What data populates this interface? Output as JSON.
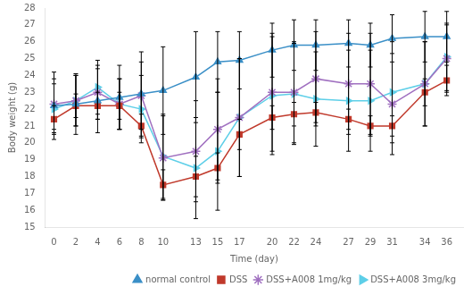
{
  "chart_data": {
    "type": "line",
    "xlabel": "Time (day)",
    "ylabel": "Body weight (g)",
    "x": [
      0,
      2,
      4,
      6,
      8,
      10,
      13,
      15,
      17,
      20,
      22,
      24,
      27,
      29,
      31,
      34,
      36
    ],
    "xlim": [
      -0.8,
      37.5
    ],
    "xticks": [
      0,
      2,
      4,
      6,
      8,
      10,
      13,
      15,
      17,
      20,
      22,
      24,
      27,
      29,
      31,
      34,
      36
    ],
    "ylim": [
      15,
      28
    ],
    "yticks": [
      15,
      16,
      17,
      18,
      19,
      20,
      21,
      22,
      23,
      24,
      25,
      26,
      27,
      28
    ],
    "grid": false,
    "legend": "lower right",
    "series": [
      {
        "name": "normal control",
        "color": "#3a8fc7",
        "marker": "triangle",
        "values": [
          22.2,
          22.3,
          22.5,
          22.7,
          22.9,
          23.1,
          23.9,
          24.8,
          24.9,
          25.5,
          25.8,
          25.8,
          25.9,
          25.8,
          26.2,
          26.3,
          26.3
        ],
        "yerr": [
          2.0,
          1.8,
          1.9,
          1.9,
          2.5,
          2.6,
          2.7,
          1.8,
          1.7,
          1.6,
          1.5,
          1.5,
          1.4,
          1.3,
          1.4,
          1.5,
          1.5
        ]
      },
      {
        "name": "DSS",
        "color": "#c0392b",
        "marker": "square",
        "values": [
          21.4,
          22.2,
          22.2,
          22.2,
          21.0,
          17.5,
          18.0,
          18.5,
          20.5,
          21.5,
          21.7,
          21.8,
          21.4,
          21.0,
          21.0,
          23.0,
          23.7
        ],
        "yerr": [
          0.8,
          0.7,
          0.8,
          0.8,
          0.7,
          0.9,
          1.2,
          0.9,
          0.9,
          0.7,
          0.7,
          0.6,
          0.6,
          0.6,
          0.6,
          0.8,
          0.9
        ]
      },
      {
        "name": "DSS+A008 1mg/kg",
        "color": "#a070c0",
        "marker": "star",
        "values": [
          22.3,
          22.5,
          23.0,
          22.3,
          22.8,
          19.1,
          19.5,
          20.8,
          21.5,
          23.0,
          23.0,
          23.8,
          23.5,
          23.5,
          22.3,
          23.5,
          25.0
        ],
        "yerr": [
          1.5,
          1.5,
          1.6,
          1.5,
          2.0,
          2.5,
          3.0,
          3.0,
          3.5,
          3.5,
          3.0,
          2.8,
          3.0,
          3.0,
          3.0,
          2.5,
          2.0
        ]
      },
      {
        "name": "DSS+A008 3mg/kg",
        "color": "#5ecfe8",
        "marker": "triangle-right",
        "values": [
          22.0,
          22.5,
          23.3,
          22.3,
          22.0,
          19.2,
          18.5,
          19.5,
          21.5,
          22.8,
          22.9,
          22.6,
          22.5,
          22.5,
          23.0,
          23.5,
          25.1
        ],
        "yerr": [
          1.5,
          1.5,
          1.6,
          1.5,
          2.0,
          2.5,
          3.0,
          3.5,
          3.5,
          3.5,
          3.0,
          2.8,
          3.0,
          3.0,
          3.0,
          2.5,
          2.0
        ]
      }
    ]
  }
}
